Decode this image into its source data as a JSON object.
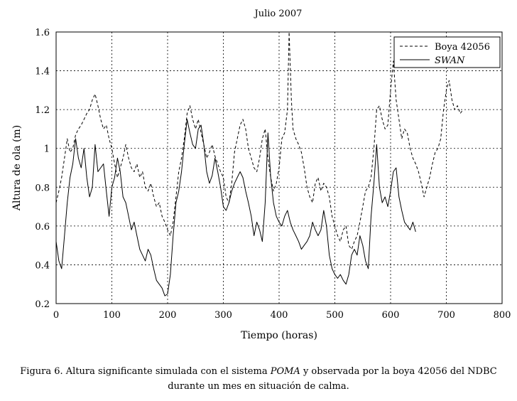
{
  "chart_data": {
    "type": "line",
    "title": "Julio 2007",
    "xlabel": "Tiempo (horas)",
    "ylabel": "Altura de ola (m)",
    "xlim": [
      0,
      800
    ],
    "ylim": [
      0.2,
      1.6
    ],
    "xticks": [
      0,
      100,
      200,
      300,
      400,
      500,
      600,
      700,
      800
    ],
    "yticks": [
      0.2,
      0.4,
      0.6,
      0.8,
      1,
      1.2,
      1.4,
      1.6
    ],
    "xtick_labels": [
      "0",
      "100",
      "200",
      "300",
      "400",
      "500",
      "600",
      "700",
      "800"
    ],
    "ytick_labels": [
      "0.2",
      "0.4",
      "0.6",
      "0.8",
      "1",
      "1.2",
      "1.4",
      "1.6"
    ],
    "grid": true,
    "legend_position": "top-right",
    "series": [
      {
        "name": "Boya 42056",
        "style": "dashed",
        "x": [
          0,
          5,
          10,
          15,
          20,
          25,
          30,
          35,
          40,
          45,
          50,
          55,
          60,
          65,
          70,
          75,
          80,
          85,
          90,
          95,
          100,
          105,
          110,
          115,
          120,
          125,
          130,
          135,
          140,
          145,
          150,
          155,
          160,
          165,
          170,
          175,
          180,
          185,
          190,
          195,
          200,
          205,
          210,
          215,
          220,
          225,
          230,
          235,
          240,
          245,
          250,
          255,
          260,
          265,
          270,
          275,
          280,
          285,
          290,
          295,
          300,
          305,
          310,
          315,
          320,
          325,
          330,
          335,
          340,
          345,
          350,
          355,
          360,
          365,
          370,
          375,
          380,
          385,
          390,
          395,
          400,
          405,
          410,
          415,
          418,
          422,
          425,
          430,
          435,
          440,
          445,
          450,
          455,
          460,
          465,
          470,
          475,
          480,
          485,
          490,
          495,
          500,
          505,
          510,
          515,
          520,
          525,
          530,
          535,
          540,
          545,
          550,
          555,
          560,
          565,
          570,
          575,
          580,
          585,
          590,
          595,
          600,
          605,
          610,
          615,
          620,
          625,
          630,
          635,
          640,
          645,
          650,
          655,
          660,
          665,
          670,
          675,
          680,
          685,
          690,
          695,
          700,
          705,
          710,
          715,
          720,
          725,
          730
        ],
        "values": [
          0.72,
          0.78,
          0.85,
          0.95,
          1.05,
          0.98,
          1.0,
          1.07,
          1.1,
          1.12,
          1.15,
          1.18,
          1.2,
          1.25,
          1.28,
          1.22,
          1.15,
          1.1,
          1.12,
          1.05,
          1.0,
          0.92,
          0.85,
          0.9,
          0.95,
          1.02,
          0.95,
          0.9,
          0.88,
          0.92,
          0.85,
          0.88,
          0.8,
          0.78,
          0.82,
          0.75,
          0.7,
          0.72,
          0.65,
          0.62,
          0.58,
          0.55,
          0.62,
          0.75,
          0.88,
          0.95,
          1.05,
          1.18,
          1.22,
          1.15,
          1.1,
          1.15,
          1.08,
          1.02,
          0.95,
          0.98,
          1.02,
          0.96,
          0.92,
          0.88,
          0.85,
          0.75,
          0.72,
          0.82,
          0.98,
          1.05,
          1.12,
          1.15,
          1.1,
          1.0,
          0.95,
          0.9,
          0.88,
          0.95,
          1.05,
          1.1,
          0.95,
          0.85,
          0.78,
          0.82,
          0.9,
          1.05,
          1.08,
          1.2,
          1.6,
          1.25,
          1.1,
          1.05,
          1.02,
          0.98,
          0.9,
          0.8,
          0.75,
          0.72,
          0.82,
          0.85,
          0.78,
          0.82,
          0.8,
          0.75,
          0.65,
          0.6,
          0.55,
          0.52,
          0.58,
          0.6,
          0.5,
          0.48,
          0.52,
          0.55,
          0.62,
          0.7,
          0.78,
          0.8,
          0.85,
          1.0,
          1.2,
          1.22,
          1.15,
          1.1,
          1.12,
          1.3,
          1.45,
          1.25,
          1.15,
          1.05,
          1.1,
          1.08,
          1.0,
          0.95,
          0.92,
          0.88,
          0.82,
          0.75,
          0.8,
          0.85,
          0.92,
          0.98,
          1.0,
          1.05,
          1.2,
          1.3,
          1.35,
          1.25,
          1.2,
          1.22,
          1.18,
          1.2
        ],
        "color": "#000000"
      },
      {
        "name": "SWAN",
        "style": "solid",
        "x": [
          0,
          5,
          10,
          15,
          20,
          25,
          30,
          35,
          40,
          45,
          50,
          55,
          60,
          65,
          70,
          75,
          80,
          85,
          90,
          95,
          100,
          105,
          110,
          115,
          120,
          125,
          130,
          135,
          140,
          145,
          150,
          155,
          160,
          165,
          170,
          175,
          180,
          185,
          190,
          195,
          200,
          205,
          210,
          215,
          220,
          225,
          230,
          235,
          240,
          245,
          250,
          255,
          260,
          265,
          270,
          275,
          280,
          285,
          290,
          295,
          300,
          305,
          310,
          315,
          320,
          325,
          330,
          335,
          340,
          345,
          350,
          355,
          360,
          365,
          370,
          375,
          380,
          385,
          390,
          395,
          400,
          405,
          410,
          415,
          420,
          425,
          430,
          435,
          440,
          445,
          450,
          455,
          460,
          465,
          470,
          475,
          480,
          485,
          490,
          495,
          500,
          505,
          510,
          515,
          520,
          525,
          530,
          535,
          540,
          545,
          550,
          555,
          560,
          565,
          570,
          575,
          580,
          585,
          590,
          595,
          600,
          605,
          610,
          615,
          620,
          625,
          630,
          635,
          640,
          645
        ],
        "values": [
          0.52,
          0.42,
          0.38,
          0.55,
          0.72,
          0.85,
          0.92,
          1.05,
          0.95,
          0.9,
          1.0,
          0.85,
          0.75,
          0.8,
          1.02,
          0.88,
          0.9,
          0.92,
          0.78,
          0.65,
          0.8,
          0.85,
          0.95,
          0.88,
          0.75,
          0.72,
          0.65,
          0.58,
          0.62,
          0.55,
          0.48,
          0.45,
          0.42,
          0.48,
          0.45,
          0.38,
          0.32,
          0.3,
          0.28,
          0.24,
          0.25,
          0.35,
          0.55,
          0.72,
          0.78,
          0.88,
          1.02,
          1.15,
          1.08,
          1.02,
          1.0,
          1.1,
          1.12,
          1.02,
          0.88,
          0.82,
          0.86,
          0.95,
          0.88,
          0.8,
          0.7,
          0.68,
          0.72,
          0.78,
          0.82,
          0.85,
          0.88,
          0.85,
          0.78,
          0.72,
          0.65,
          0.55,
          0.62,
          0.58,
          0.52,
          0.72,
          1.08,
          0.85,
          0.72,
          0.65,
          0.62,
          0.6,
          0.65,
          0.68,
          0.62,
          0.58,
          0.55,
          0.52,
          0.48,
          0.5,
          0.52,
          0.55,
          0.62,
          0.58,
          0.55,
          0.58,
          0.68,
          0.6,
          0.45,
          0.38,
          0.35,
          0.33,
          0.35,
          0.32,
          0.3,
          0.35,
          0.45,
          0.48,
          0.45,
          0.55,
          0.5,
          0.42,
          0.38,
          0.65,
          0.82,
          1.02,
          0.8,
          0.72,
          0.75,
          0.7,
          0.78,
          0.88,
          0.9,
          0.75,
          0.68,
          0.62,
          0.6,
          0.58,
          0.62,
          0.57
        ],
        "color": "#000000"
      }
    ]
  },
  "caption": {
    "prefix": "Figura 6. Altura significante simulada con el sistema ",
    "emph": "POMA",
    "suffix": " y observada por la boya 42056 del NDBC",
    "line2": "durante un mes en situación de calma."
  }
}
